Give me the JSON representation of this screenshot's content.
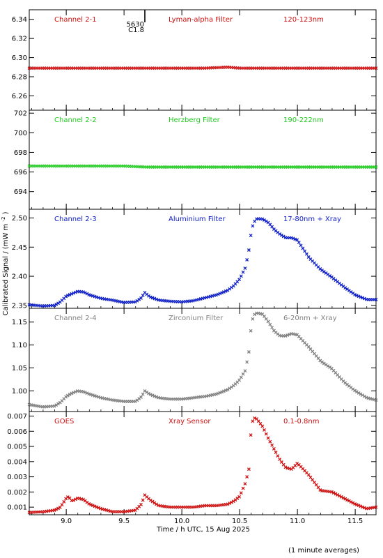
{
  "figure": {
    "ylabel": "Calibrated Signal / (mW m",
    "ylabel_sup": "-2",
    "ylabel_close": ")",
    "xlabel": "Time / h UTC, 15 Aug 2025",
    "footnote": "(1 minute averages)",
    "flare_marker": {
      "x": 9.68,
      "label_top": "5630",
      "label_bottom": "C1.8"
    }
  },
  "chart_data": [
    {
      "type": "scatter",
      "channel": "Channel 2-1",
      "filter": "Lyman-alpha Filter",
      "band": "120-123nm",
      "color": "#d01010",
      "xlim": [
        8.68,
        11.68
      ],
      "ylim": [
        6.245,
        6.35
      ],
      "yticks": [
        6.26,
        6.28,
        6.3,
        6.32,
        6.34
      ],
      "ytick_labels": [
        "6.26",
        "6.28",
        "6.30",
        "6.32",
        "6.34"
      ],
      "x": [
        8.7,
        9.0,
        9.5,
        10.0,
        10.2,
        10.4,
        10.5,
        11.0,
        11.5,
        11.68
      ],
      "values": [
        6.289,
        6.289,
        6.289,
        6.289,
        6.289,
        6.29,
        6.289,
        6.289,
        6.289,
        6.289
      ]
    },
    {
      "type": "scatter",
      "channel": "Channel 2-2",
      "filter": "Herzberg Filter",
      "band": "190-222nm",
      "color": "#22cc22",
      "xlim": [
        8.68,
        11.68
      ],
      "ylim": [
        692.2,
        702.3
      ],
      "yticks": [
        694,
        696,
        698,
        700,
        702
      ],
      "ytick_labels": [
        "694",
        "696",
        "698",
        "700",
        "702"
      ],
      "x": [
        8.7,
        9.0,
        9.5,
        9.7,
        10.0,
        10.5,
        11.0,
        11.5,
        11.68
      ],
      "values": [
        696.6,
        696.6,
        696.6,
        696.5,
        696.5,
        696.5,
        696.5,
        696.5,
        696.5
      ]
    },
    {
      "type": "scatter",
      "channel": "Channel 2-3",
      "filter": "Aluminium Filter",
      "band": "17-80nm + Xray",
      "color": "#1020c8",
      "xlim": [
        8.68,
        11.68
      ],
      "ylim": [
        2.345,
        2.515
      ],
      "yticks": [
        2.35,
        2.4,
        2.45,
        2.5
      ],
      "ytick_labels": [
        "2.35",
        "2.40",
        "2.45",
        "2.50"
      ],
      "x": [
        8.68,
        8.8,
        8.9,
        8.95,
        9.0,
        9.05,
        9.1,
        9.15,
        9.2,
        9.3,
        9.4,
        9.5,
        9.6,
        9.65,
        9.68,
        9.72,
        9.8,
        9.9,
        10.0,
        10.1,
        10.2,
        10.3,
        10.4,
        10.45,
        10.5,
        10.55,
        10.58,
        10.6,
        10.62,
        10.65,
        10.7,
        10.75,
        10.8,
        10.85,
        10.9,
        10.95,
        11.0,
        11.1,
        11.2,
        11.3,
        11.4,
        11.5,
        11.6,
        11.68
      ],
      "values": [
        2.351,
        2.349,
        2.35,
        2.356,
        2.366,
        2.37,
        2.374,
        2.373,
        2.368,
        2.362,
        2.359,
        2.355,
        2.356,
        2.363,
        2.372,
        2.365,
        2.359,
        2.357,
        2.356,
        2.358,
        2.363,
        2.368,
        2.376,
        2.384,
        2.395,
        2.415,
        2.445,
        2.475,
        2.492,
        2.499,
        2.498,
        2.492,
        2.48,
        2.472,
        2.466,
        2.466,
        2.462,
        2.432,
        2.412,
        2.398,
        2.382,
        2.368,
        2.36,
        2.36
      ]
    },
    {
      "type": "scatter",
      "channel": "Channel 2-4",
      "filter": "Zirconium Filter",
      "band": "6-20nm + Xray",
      "color": "#808080",
      "xlim": [
        8.68,
        11.68
      ],
      "ylim": [
        0.955,
        1.18
      ],
      "yticks": [
        1.0,
        1.05,
        1.1,
        1.15
      ],
      "ytick_labels": [
        "1.00",
        "1.05",
        "1.10",
        "1.15"
      ],
      "x": [
        8.68,
        8.8,
        8.9,
        8.95,
        9.0,
        9.05,
        9.1,
        9.15,
        9.2,
        9.3,
        9.4,
        9.5,
        9.6,
        9.65,
        9.68,
        9.72,
        9.8,
        9.9,
        10.0,
        10.1,
        10.2,
        10.3,
        10.4,
        10.45,
        10.5,
        10.55,
        10.58,
        10.6,
        10.62,
        10.65,
        10.7,
        10.75,
        10.8,
        10.85,
        10.9,
        10.95,
        11.0,
        11.1,
        11.2,
        11.3,
        11.4,
        11.5,
        11.6,
        11.68
      ],
      "values": [
        0.97,
        0.965,
        0.967,
        0.975,
        0.988,
        0.995,
        1.0,
        0.998,
        0.993,
        0.985,
        0.98,
        0.977,
        0.977,
        0.987,
        1.0,
        0.993,
        0.985,
        0.982,
        0.982,
        0.985,
        0.988,
        0.993,
        1.003,
        1.012,
        1.024,
        1.045,
        1.085,
        1.14,
        1.165,
        1.17,
        1.167,
        1.15,
        1.13,
        1.12,
        1.12,
        1.125,
        1.122,
        1.095,
        1.065,
        1.048,
        1.02,
        1.0,
        0.985,
        0.98
      ]
    },
    {
      "type": "scatter",
      "channel": "GOES",
      "filter": "Xray Sensor",
      "band": "0.1-0.8nm",
      "color": "#d01010",
      "xlim": [
        8.68,
        11.68
      ],
      "ylim": [
        0.0005,
        0.0073
      ],
      "yticks": [
        0.001,
        0.002,
        0.003,
        0.004,
        0.005,
        0.006,
        0.007
      ],
      "ytick_labels": [
        "0.001",
        "0.002",
        "0.003",
        "0.004",
        "0.005",
        "0.006",
        "0.007"
      ],
      "xticks": [
        9.0,
        9.5,
        10.0,
        10.5,
        11.0,
        11.5
      ],
      "xtick_labels": [
        "9.0",
        "9.5",
        "10.0",
        "10.5",
        "11.0",
        "11.5"
      ],
      "x": [
        8.68,
        8.8,
        8.9,
        8.95,
        9.0,
        9.02,
        9.05,
        9.1,
        9.15,
        9.2,
        9.3,
        9.4,
        9.5,
        9.6,
        9.65,
        9.68,
        9.72,
        9.8,
        9.9,
        10.0,
        10.1,
        10.2,
        10.3,
        10.4,
        10.45,
        10.5,
        10.55,
        10.58,
        10.6,
        10.62,
        10.65,
        10.7,
        10.75,
        10.8,
        10.85,
        10.9,
        10.95,
        11.0,
        11.1,
        11.2,
        11.3,
        11.4,
        11.5,
        11.6,
        11.68
      ],
      "values": [
        0.00065,
        0.0007,
        0.0008,
        0.001,
        0.0016,
        0.0017,
        0.0014,
        0.0016,
        0.0015,
        0.0012,
        0.0009,
        0.0007,
        0.0007,
        0.0008,
        0.0012,
        0.0018,
        0.0015,
        0.0011,
        0.001,
        0.001,
        0.001,
        0.0011,
        0.0011,
        0.0012,
        0.0014,
        0.0017,
        0.0026,
        0.0035,
        0.0062,
        0.0069,
        0.0068,
        0.0063,
        0.0055,
        0.0048,
        0.0041,
        0.0036,
        0.0035,
        0.0039,
        0.0031,
        0.0021,
        0.002,
        0.0016,
        0.0012,
        0.0009,
        0.001
      ]
    }
  ]
}
